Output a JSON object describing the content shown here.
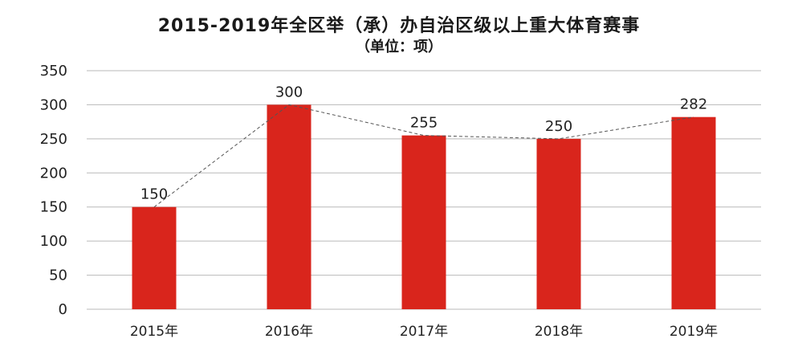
{
  "chart_data": {
    "type": "bar",
    "title": "2015-2019年全区举（承）办自治区级以上重大体育赛事",
    "subtitle": "（单位：项）",
    "categories": [
      "2015年",
      "2016年",
      "2017年",
      "2018年",
      "2019年"
    ],
    "series": [
      {
        "values": [
          150,
          300,
          255,
          250,
          282
        ]
      }
    ],
    "data_labels": [
      "150",
      "300",
      "255",
      "250",
      "282"
    ],
    "y_ticks": [
      0,
      50,
      100,
      150,
      200,
      250,
      300,
      350
    ],
    "ylim": [
      0,
      350
    ],
    "grid": true,
    "trend_line": "dashed",
    "legend": "none",
    "colors": {
      "bar": "#d9251c",
      "grid": "#b9b9b9",
      "trend": "#555555"
    }
  }
}
